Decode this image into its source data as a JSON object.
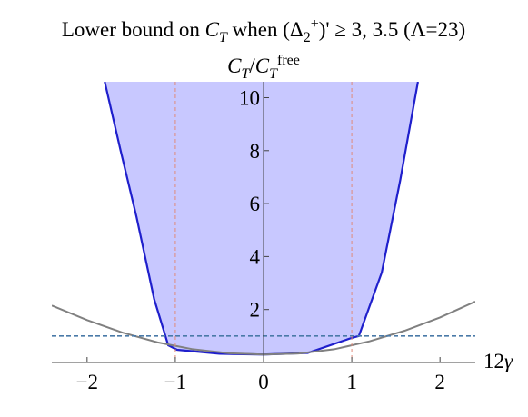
{
  "chart_data": {
    "type": "line",
    "title": [
      {
        "text": "Lower bound on "
      },
      {
        "text": "C",
        "italic": true
      },
      {
        "text": "T",
        "italic": true,
        "sub": true
      },
      {
        "text": " when ("
      },
      {
        "text": "Δ"
      },
      {
        "text": "2",
        "sub": true
      },
      {
        "text": "+",
        "sup": true
      },
      {
        "text": ")' ≥ 3, 3.5  (Λ=23)"
      }
    ],
    "ylabel": [
      {
        "text": "C",
        "italic": true
      },
      {
        "text": "T",
        "italic": true,
        "sub": true
      },
      {
        "text": "/"
      },
      {
        "text": "C",
        "italic": true
      },
      {
        "text": "T",
        "italic": true,
        "sub": true
      },
      {
        "text": "free",
        "sup": true
      }
    ],
    "xlabel": [
      {
        "text": "12"
      },
      {
        "text": "γ",
        "italic": true
      }
    ],
    "xlim": [
      -2.4,
      2.4
    ],
    "ylim": [
      0,
      10.6
    ],
    "xticks": [
      {
        "value": -2,
        "label": "−2"
      },
      {
        "value": -1,
        "label": "−1"
      },
      0,
      1,
      2
    ],
    "yticks": [
      2,
      4,
      6,
      8,
      10
    ],
    "series": [
      {
        "color": "#1f1fcc",
        "fill": "#c8c8ff",
        "x": [
          -1.8,
          -1.62,
          -1.44,
          -1.24,
          -1.08,
          -0.98,
          -0.5,
          0,
          0.5,
          1.0,
          1.08,
          1.34,
          1.55,
          1.75
        ],
        "values": [
          10.6,
          8.0,
          5.5,
          2.4,
          0.65,
          0.48,
          0.33,
          0.3,
          0.36,
          0.93,
          1.0,
          3.4,
          6.9,
          10.6
        ]
      },
      {
        "color": "#808080",
        "x": [
          -2.4,
          -2.0,
          -1.6,
          -1.2,
          -0.8,
          -0.4,
          0,
          0.4,
          0.8,
          1.2,
          1.6,
          2.0,
          2.4
        ],
        "values": [
          2.15,
          1.6,
          1.13,
          0.76,
          0.5,
          0.35,
          0.3,
          0.34,
          0.5,
          0.8,
          1.2,
          1.7,
          2.3
        ]
      }
    ],
    "hlines": [
      {
        "value": 1,
        "color": "#4a7aa8"
      }
    ],
    "vlines": [
      {
        "value": -1,
        "color": "#e08a7a"
      },
      {
        "value": 1,
        "color": "#e08a7a"
      }
    ]
  }
}
